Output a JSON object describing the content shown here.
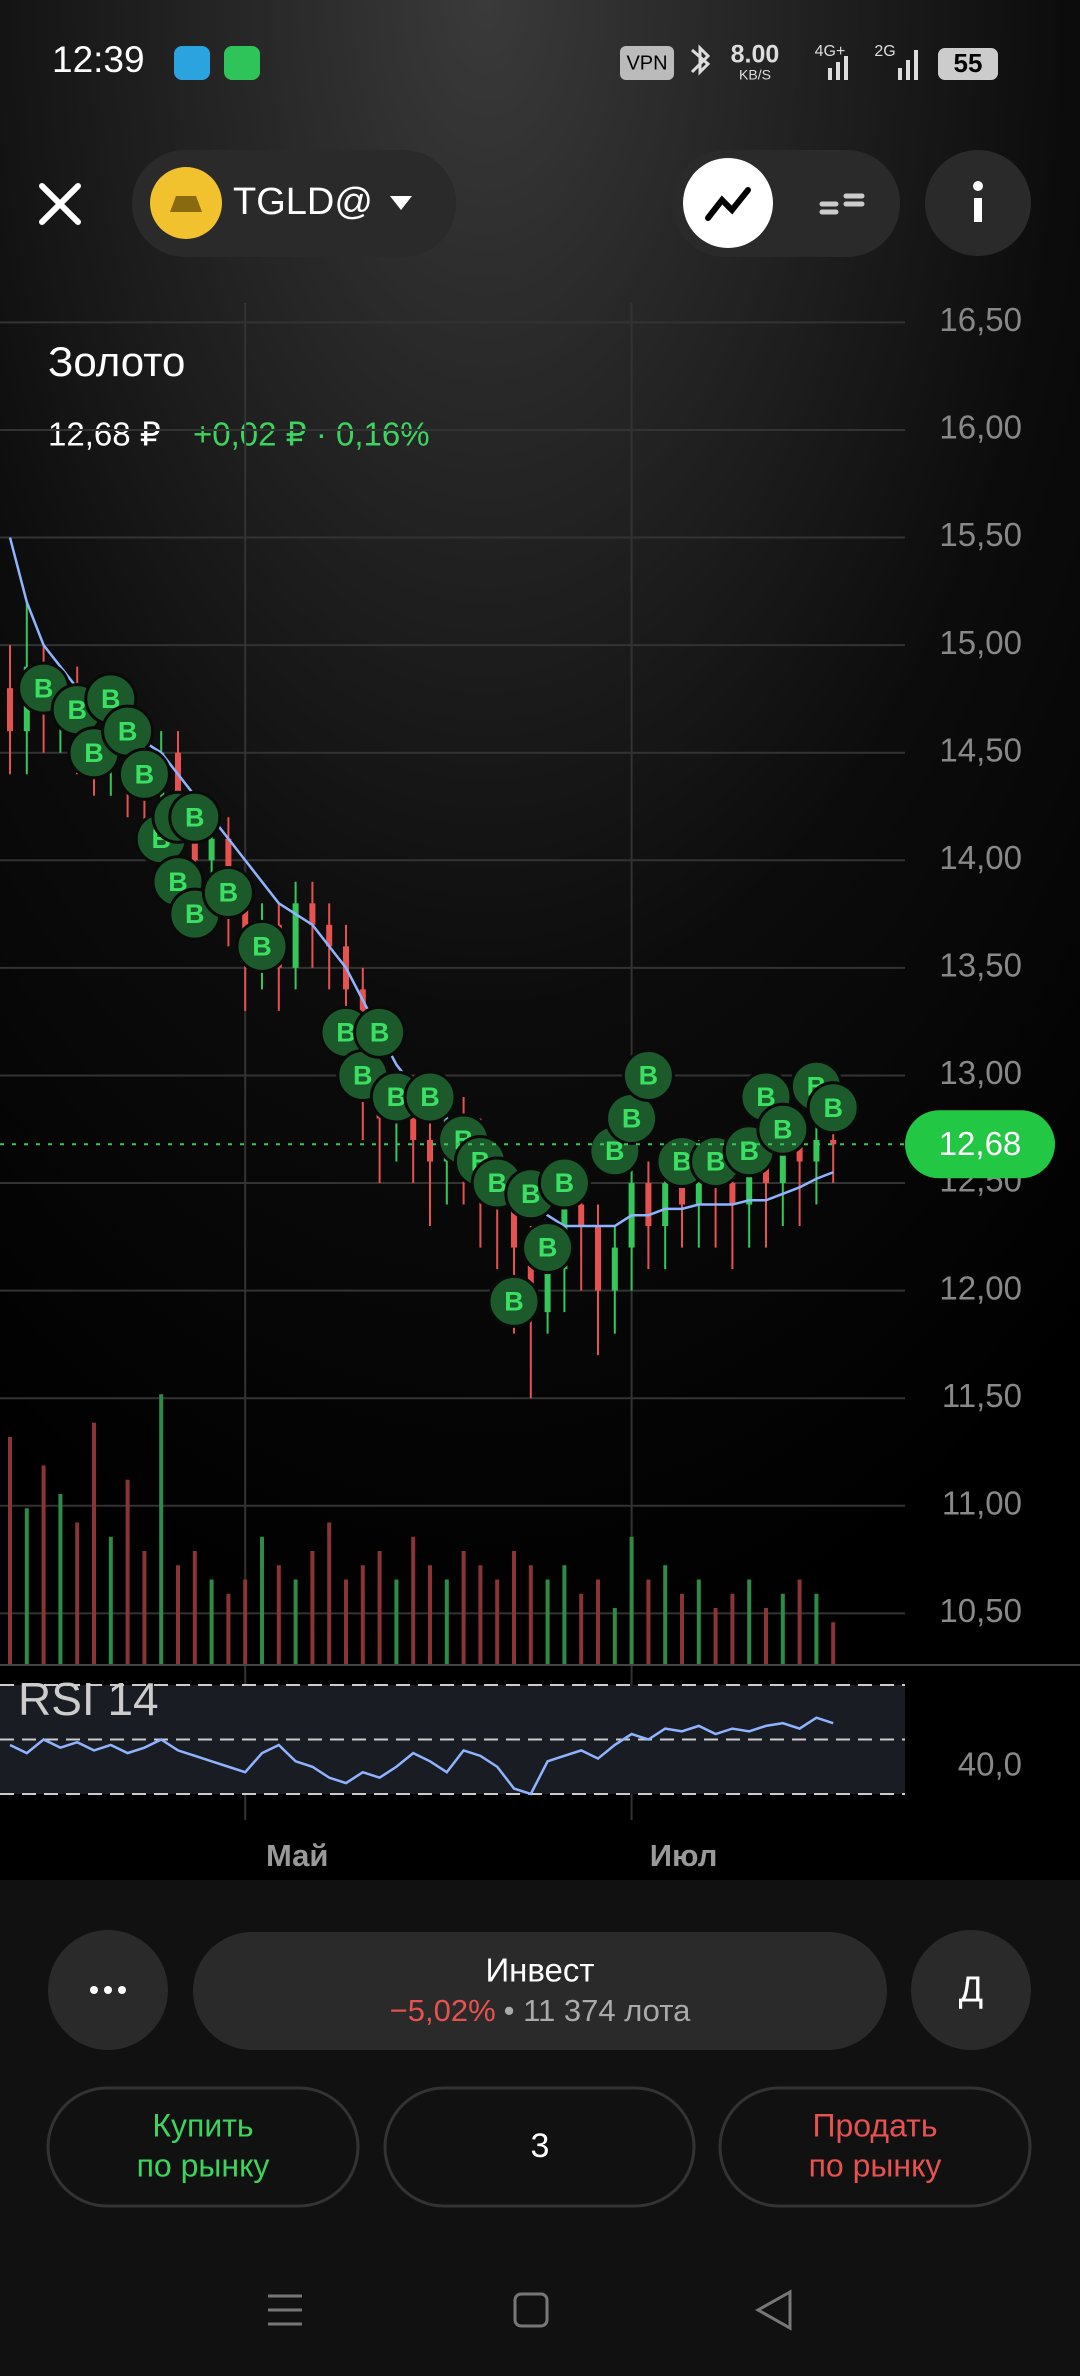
{
  "status": {
    "time": "12:39",
    "vpn": "VPN",
    "speed": "8.00",
    "speed_unit": "KB/S",
    "net1": "4G+",
    "net2": "2G",
    "battery": "55"
  },
  "header": {
    "ticker": "TGLD@"
  },
  "instrument": {
    "name": "Золото",
    "price": "12,68 ₽",
    "change": "+0,02 ₽ · 0,16%"
  },
  "chart_data": {
    "type": "candlestick",
    "ylim": [
      10.26,
      16.59
    ],
    "yticks": [
      {
        "value": 16.5,
        "label": "16,50"
      },
      {
        "value": 16,
        "label": "16,00"
      },
      {
        "value": 15.5,
        "label": "15,50"
      },
      {
        "value": 15,
        "label": "15,00"
      },
      {
        "value": 14.5,
        "label": "14,50"
      },
      {
        "value": 14,
        "label": "14,00"
      },
      {
        "value": 13.5,
        "label": "13,50"
      },
      {
        "value": 13,
        "label": "13,00"
      },
      {
        "value": 12.5,
        "label": "12,50"
      },
      {
        "value": 12,
        "label": "12,00"
      },
      {
        "value": 11.5,
        "label": "11,50"
      },
      {
        "value": 11,
        "label": "11,00"
      },
      {
        "value": 10.5,
        "label": "10,50"
      }
    ],
    "xticks": [
      {
        "value": 14,
        "label": "Май"
      },
      {
        "value": 37,
        "label": "Июл"
      }
    ],
    "last_price": {
      "value": 12.68,
      "label": "12,68"
    },
    "candles": {
      "open": [
        14.8,
        14.6,
        14.9,
        14.7,
        14.8,
        14.6,
        14.5,
        14.7,
        14.4,
        14.3,
        14.5,
        14.2,
        14.0,
        14.1,
        13.8,
        13.6,
        13.7,
        13.5,
        13.8,
        13.7,
        13.6,
        13.4,
        13.0,
        12.8,
        12.9,
        12.7,
        12.6,
        12.8,
        12.7,
        12.5,
        12.4,
        12.2,
        11.9,
        12.1,
        12.4,
        12.3,
        12.0,
        12.2,
        12.5,
        12.3,
        12.5,
        12.4,
        12.6,
        12.5,
        12.4,
        12.6,
        12.5,
        12.7,
        12.6,
        12.7
      ],
      "close": [
        14.6,
        14.9,
        14.7,
        14.8,
        14.6,
        14.5,
        14.7,
        14.4,
        14.3,
        14.5,
        14.2,
        14.0,
        14.1,
        13.8,
        13.6,
        13.7,
        13.5,
        13.8,
        13.7,
        13.6,
        13.4,
        13.0,
        12.8,
        12.9,
        12.7,
        12.6,
        12.8,
        12.7,
        12.5,
        12.4,
        12.2,
        11.9,
        12.1,
        12.4,
        12.3,
        12.0,
        12.2,
        12.5,
        12.3,
        12.5,
        12.4,
        12.6,
        12.5,
        12.4,
        12.6,
        12.5,
        12.7,
        12.6,
        12.7,
        12.68
      ],
      "high": [
        15.0,
        15.2,
        15.0,
        14.9,
        14.9,
        14.7,
        14.8,
        14.8,
        14.5,
        14.6,
        14.6,
        14.3,
        14.2,
        14.2,
        13.9,
        13.8,
        13.8,
        13.9,
        13.9,
        13.8,
        13.7,
        13.5,
        13.1,
        13.0,
        13.0,
        12.9,
        12.9,
        12.9,
        12.8,
        12.6,
        12.5,
        12.3,
        12.2,
        12.5,
        12.5,
        12.4,
        12.3,
        12.6,
        12.6,
        12.6,
        12.6,
        12.7,
        12.7,
        12.6,
        12.7,
        12.7,
        12.8,
        12.8,
        12.8,
        12.8
      ],
      "low": [
        14.4,
        14.4,
        14.5,
        14.5,
        14.4,
        14.3,
        14.3,
        14.2,
        14.1,
        14.1,
        14.0,
        13.8,
        13.8,
        13.6,
        13.3,
        13.4,
        13.3,
        13.4,
        13.5,
        13.4,
        13.2,
        12.7,
        12.5,
        12.6,
        12.5,
        12.3,
        12.4,
        12.4,
        12.2,
        12.1,
        11.8,
        11.5,
        11.8,
        11.9,
        12.0,
        11.7,
        11.8,
        12.0,
        12.1,
        12.1,
        12.2,
        12.2,
        12.2,
        12.1,
        12.2,
        12.2,
        12.3,
        12.3,
        12.4,
        12.5
      ]
    },
    "ma": [
      15.5,
      15.2,
      15.0,
      14.9,
      14.8,
      14.7,
      14.65,
      14.6,
      14.55,
      14.5,
      14.4,
      14.3,
      14.2,
      14.1,
      14.0,
      13.9,
      13.8,
      13.75,
      13.7,
      13.6,
      13.5,
      13.35,
      13.2,
      13.05,
      12.95,
      12.85,
      12.8,
      12.75,
      12.7,
      12.6,
      12.5,
      12.4,
      12.35,
      12.3,
      12.3,
      12.3,
      12.3,
      12.35,
      12.35,
      12.38,
      12.38,
      12.4,
      12.4,
      12.4,
      12.42,
      12.42,
      12.45,
      12.48,
      12.52,
      12.55
    ],
    "ma_color": "#8fb4ff",
    "volume": [
      80,
      55,
      70,
      60,
      50,
      85,
      45,
      65,
      40,
      95,
      35,
      40,
      30,
      25,
      30,
      45,
      35,
      30,
      40,
      50,
      30,
      35,
      40,
      30,
      45,
      35,
      30,
      40,
      35,
      30,
      40,
      35,
      30,
      35,
      25,
      30,
      20,
      45,
      30,
      35,
      25,
      30,
      20,
      25,
      30,
      20,
      25,
      30,
      25,
      15
    ],
    "vlim": [
      0,
      100
    ],
    "trade_label": "B",
    "trades": [
      {
        "index": 2,
        "price": 14.8
      },
      {
        "index": 4,
        "price": 14.7
      },
      {
        "index": 5,
        "price": 14.5
      },
      {
        "index": 6,
        "price": 14.75
      },
      {
        "index": 7,
        "price": 14.6
      },
      {
        "index": 8,
        "price": 14.4
      },
      {
        "index": 9,
        "price": 14.1
      },
      {
        "index": 10,
        "price": 14.2
      },
      {
        "index": 11,
        "price": 14.2
      },
      {
        "index": 10,
        "price": 13.9
      },
      {
        "index": 11,
        "price": 13.75
      },
      {
        "index": 13,
        "price": 13.85
      },
      {
        "index": 15,
        "price": 13.6
      },
      {
        "index": 20,
        "price": 13.2
      },
      {
        "index": 21,
        "price": 13.0
      },
      {
        "index": 22,
        "price": 13.2
      },
      {
        "index": 23,
        "price": 12.9
      },
      {
        "index": 25,
        "price": 12.9
      },
      {
        "index": 27,
        "price": 12.7
      },
      {
        "index": 28,
        "price": 12.6
      },
      {
        "index": 29,
        "price": 12.5
      },
      {
        "index": 30,
        "price": 11.95
      },
      {
        "index": 31,
        "price": 12.45
      },
      {
        "index": 32,
        "price": 12.2
      },
      {
        "index": 33,
        "price": 12.5
      },
      {
        "index": 36,
        "price": 12.65
      },
      {
        "index": 37,
        "price": 12.8
      },
      {
        "index": 38,
        "price": 13.0
      },
      {
        "index": 40,
        "price": 12.6
      },
      {
        "index": 42,
        "price": 12.6
      },
      {
        "index": 44,
        "price": 12.65
      },
      {
        "index": 45,
        "price": 12.9
      },
      {
        "index": 46,
        "price": 12.75
      },
      {
        "index": 48,
        "price": 12.95
      },
      {
        "index": 49,
        "price": 12.85
      }
    ],
    "rsi_title": "RSI 14",
    "rsi": [
      48,
      45,
      50,
      47,
      49,
      46,
      48,
      45,
      47,
      50,
      46,
      44,
      42,
      40,
      38,
      45,
      48,
      42,
      40,
      36,
      34,
      38,
      36,
      40,
      45,
      42,
      38,
      46,
      44,
      40,
      32,
      30,
      42,
      44,
      46,
      43,
      48,
      52,
      50,
      54,
      53,
      55,
      52,
      54,
      53,
      55,
      56,
      54,
      58,
      56
    ],
    "rsi_lim": [
      30,
      70
    ],
    "rsi_levels": [
      70,
      50,
      30
    ],
    "rsi_ticks": [
      {
        "value": 40,
        "label": "40,0"
      }
    ]
  },
  "footer": {
    "account": "Инвест",
    "account_change": "−5,02%",
    "account_lots": "• 11 374 лота",
    "account_short": "Д",
    "buy": [
      "Купить",
      "по рынку"
    ],
    "quantity": "3",
    "sell": [
      "Продать",
      "по рынку"
    ]
  }
}
